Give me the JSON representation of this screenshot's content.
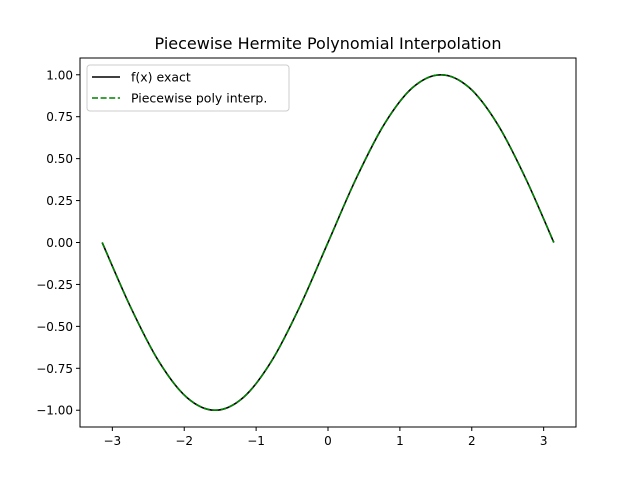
{
  "chart_data": {
    "type": "line",
    "title": "Piecewise Hermite Polynomial Interpolation",
    "xlabel": "",
    "ylabel": "",
    "xlim": [
      -3.45,
      3.45
    ],
    "ylim": [
      -1.1,
      1.1
    ],
    "x_ticks": [
      -3,
      -2,
      -1,
      0,
      1,
      2,
      3
    ],
    "x_tick_labels": [
      "−3",
      "−2",
      "−1",
      "0",
      "1",
      "2",
      "3"
    ],
    "y_ticks": [
      -1.0,
      -0.75,
      -0.5,
      -0.25,
      0.0,
      0.25,
      0.5,
      0.75,
      1.0
    ],
    "y_tick_labels": [
      "−1.00",
      "−0.75",
      "−0.50",
      "−0.25",
      "0.00",
      "0.25",
      "0.50",
      "0.75",
      "1.00"
    ],
    "grid": false,
    "legend_position": "top-left",
    "x_domain": [
      -3.14159,
      3.14159
    ],
    "x": [
      -3.14159,
      -2.74889,
      -2.35619,
      -1.9635,
      -1.5708,
      -1.1781,
      -0.7854,
      -0.3927,
      0.0,
      0.3927,
      0.7854,
      1.1781,
      1.5708,
      1.9635,
      2.35619,
      2.74889,
      3.14159
    ],
    "series": [
      {
        "name": "f(x) exact",
        "color": "#000000",
        "style": "solid",
        "y": [
          0.0,
          -0.38268,
          -0.70711,
          -0.92388,
          -1.0,
          -0.92388,
          -0.70711,
          -0.38268,
          0.0,
          0.38268,
          0.70711,
          0.92388,
          1.0,
          0.92388,
          0.70711,
          0.38268,
          0.0
        ]
      },
      {
        "name": "Piecewise poly interp.",
        "color": "#008000",
        "style": "dashed",
        "y": [
          0.0,
          -0.38268,
          -0.70711,
          -0.92388,
          -1.0,
          -0.92388,
          -0.70711,
          -0.38268,
          0.0,
          0.38268,
          0.70711,
          0.92388,
          1.0,
          0.92388,
          0.70711,
          0.38268,
          0.0
        ]
      }
    ]
  }
}
